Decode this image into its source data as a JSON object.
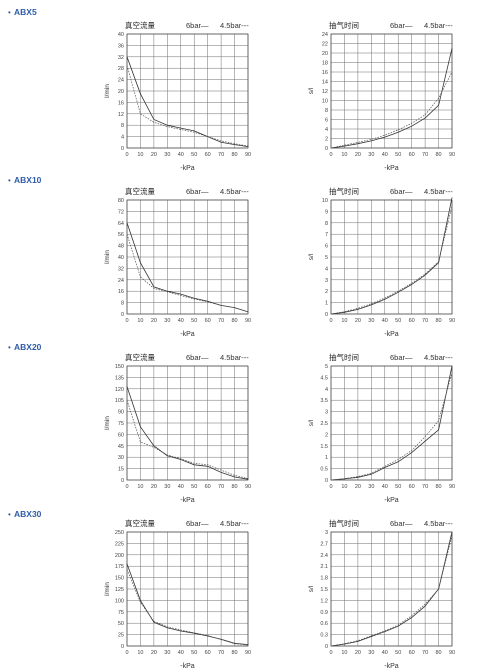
{
  "sections": [
    {
      "label": "ABX5"
    },
    {
      "label": "ABX10"
    },
    {
      "label": "ABX20"
    },
    {
      "label": "ABX30"
    }
  ],
  "section_marker": "•",
  "colors": {
    "section_label": "#2f5da8",
    "grid": "#6e6e6e",
    "solid": "#333333",
    "dashed": "#555555"
  },
  "chart_data": [
    {
      "type": "line",
      "section": "ABX5",
      "title": "真空流量",
      "legend": [
        "6bar—",
        "4.5bar---"
      ],
      "xlabel": "-kPa",
      "ylabel": "l/min",
      "x": [
        0,
        10,
        20,
        30,
        40,
        50,
        60,
        70,
        80,
        90
      ],
      "xlim": [
        0,
        90
      ],
      "ylim": [
        0,
        40
      ],
      "yticks": [
        "0",
        "4",
        "8",
        "12",
        "16",
        "20",
        "24",
        "28",
        "32",
        "36",
        "40"
      ],
      "series": [
        {
          "name": "6bar",
          "style": "solid",
          "values": [
            32,
            19,
            10,
            8,
            7,
            6,
            4,
            2,
            1.2,
            0.5
          ]
        },
        {
          "name": "4.5bar",
          "style": "dashed",
          "values": [
            29,
            12,
            9,
            7.5,
            6.5,
            5.5,
            4,
            2.5,
            1.5,
            0.7
          ]
        }
      ]
    },
    {
      "type": "line",
      "section": "ABX5",
      "title": "抽气时间",
      "legend": [
        "6bar—",
        "4.5bar---"
      ],
      "xlabel": "-kPa",
      "ylabel": "s/l",
      "x": [
        0,
        10,
        20,
        30,
        40,
        50,
        60,
        70,
        80,
        90
      ],
      "xlim": [
        0,
        90
      ],
      "ylim": [
        0,
        24
      ],
      "yticks": [
        "0",
        "2",
        "4",
        "6",
        "8",
        "10",
        "12",
        "14",
        "16",
        "18",
        "20",
        "22",
        "24"
      ],
      "series": [
        {
          "name": "6bar",
          "style": "solid",
          "values": [
            0,
            0.4,
            0.9,
            1.5,
            2.3,
            3.3,
            4.6,
            6.3,
            9,
            21
          ]
        },
        {
          "name": "4.5bar",
          "style": "dashed",
          "values": [
            0,
            0.6,
            1.2,
            1.8,
            2.7,
            3.8,
            5.2,
            7,
            10.5,
            16
          ]
        }
      ]
    },
    {
      "type": "line",
      "section": "ABX10",
      "title": "真空流量",
      "legend": [
        "6bar—",
        "4.5bar---"
      ],
      "xlabel": "-kPa",
      "ylabel": "l/min",
      "x": [
        0,
        10,
        20,
        30,
        40,
        50,
        60,
        70,
        80,
        90
      ],
      "xlim": [
        0,
        90
      ],
      "ylim": [
        0,
        80
      ],
      "yticks": [
        "0",
        "8",
        "16",
        "24",
        "32",
        "40",
        "48",
        "56",
        "64",
        "72",
        "80"
      ],
      "series": [
        {
          "name": "6bar",
          "style": "solid",
          "values": [
            64,
            36,
            19,
            16,
            14,
            11,
            9,
            6,
            4.5,
            1.5
          ]
        },
        {
          "name": "4.5bar",
          "style": "dashed",
          "values": [
            56,
            26,
            18,
            15.5,
            13,
            10.5,
            8.5,
            6,
            4.5,
            1.5
          ]
        }
      ]
    },
    {
      "type": "line",
      "section": "ABX10",
      "title": "抽气时间",
      "legend": [
        "6bar—",
        "4.5bar---"
      ],
      "xlabel": "-kPa",
      "ylabel": "s/l",
      "x": [
        0,
        10,
        20,
        30,
        40,
        50,
        60,
        70,
        80,
        90
      ],
      "xlim": [
        0,
        90
      ],
      "ylim": [
        0,
        10
      ],
      "yticks": [
        "0",
        "1",
        "2",
        "3",
        "4",
        "5",
        "6",
        "7",
        "8",
        "9",
        "10"
      ],
      "series": [
        {
          "name": "6bar",
          "style": "solid",
          "values": [
            0,
            0.15,
            0.4,
            0.8,
            1.3,
            1.9,
            2.6,
            3.4,
            4.5,
            10.2
          ]
        },
        {
          "name": "4.5bar",
          "style": "dashed",
          "values": [
            0,
            0.2,
            0.5,
            0.9,
            1.4,
            2,
            2.7,
            3.5,
            4.6,
            9.5
          ]
        }
      ]
    },
    {
      "type": "line",
      "section": "ABX20",
      "title": "真空流量",
      "legend": [
        "6bar—",
        "4.5bar---"
      ],
      "xlabel": "-kPa",
      "ylabel": "l/min",
      "x": [
        0,
        10,
        20,
        30,
        40,
        50,
        60,
        70,
        80,
        90
      ],
      "xlim": [
        0,
        90
      ],
      "ylim": [
        0,
        150
      ],
      "yticks": [
        "0",
        "15",
        "30",
        "45",
        "60",
        "75",
        "90",
        "105",
        "120",
        "135",
        "150"
      ],
      "series": [
        {
          "name": "6bar",
          "style": "solid",
          "values": [
            123,
            70,
            45,
            32,
            27,
            20,
            18,
            10,
            4,
            1
          ]
        },
        {
          "name": "4.5bar",
          "style": "dashed",
          "values": [
            105,
            50,
            43,
            33,
            28,
            22,
            20,
            13,
            6,
            2
          ]
        }
      ]
    },
    {
      "type": "line",
      "section": "ABX20",
      "title": "抽气时间",
      "legend": [
        "6bar—",
        "4.5bar---"
      ],
      "xlabel": "-kPa",
      "ylabel": "s/l",
      "x": [
        0,
        10,
        20,
        30,
        40,
        50,
        60,
        70,
        80,
        90
      ],
      "xlim": [
        0,
        90
      ],
      "ylim": [
        0,
        5
      ],
      "yticks": [
        "0",
        "0.5",
        "1",
        "1.5",
        "2",
        "2.5",
        "3",
        "3.5",
        "4",
        "4.5",
        "5"
      ],
      "series": [
        {
          "name": "6bar",
          "style": "solid",
          "values": [
            0,
            0.05,
            0.12,
            0.25,
            0.55,
            0.8,
            1.2,
            1.7,
            2.2,
            5
          ]
        },
        {
          "name": "4.5bar",
          "style": "dashed",
          "values": [
            0,
            0.06,
            0.15,
            0.3,
            0.6,
            0.9,
            1.3,
            1.9,
            2.6,
            4.7
          ]
        }
      ]
    },
    {
      "type": "line",
      "section": "ABX30",
      "title": "真空流量",
      "legend": [
        "6bar—",
        "4.5bar---"
      ],
      "xlabel": "-kPa",
      "ylabel": "l/min",
      "x": [
        0,
        10,
        20,
        30,
        40,
        50,
        60,
        70,
        80,
        90
      ],
      "xlim": [
        0,
        90
      ],
      "ylim": [
        0,
        250
      ],
      "yticks": [
        "0",
        "25",
        "50",
        "75",
        "100",
        "125",
        "150",
        "175",
        "200",
        "225",
        "250"
      ],
      "series": [
        {
          "name": "6bar",
          "style": "solid",
          "values": [
            180,
            100,
            52,
            40,
            33,
            28,
            22,
            15,
            6,
            3
          ]
        },
        {
          "name": "4.5bar",
          "style": "dashed",
          "values": [
            168,
            96,
            54,
            42,
            35,
            29,
            23,
            14,
            5,
            2
          ]
        }
      ]
    },
    {
      "type": "line",
      "section": "ABX30",
      "title": "抽气时间",
      "legend": [
        "6bar—",
        "4.5bar---"
      ],
      "xlabel": "-kPa",
      "ylabel": "s/l",
      "x": [
        0,
        10,
        20,
        30,
        40,
        50,
        60,
        70,
        80,
        90
      ],
      "xlim": [
        0,
        90
      ],
      "ylim": [
        0,
        3
      ],
      "yticks": [
        "0",
        "0.3",
        "0.6",
        "0.9",
        "1.2",
        "1.5",
        "1.8",
        "2.1",
        "2.4",
        "2.7",
        "3"
      ],
      "series": [
        {
          "name": "6bar",
          "style": "solid",
          "values": [
            0,
            0.05,
            0.12,
            0.25,
            0.38,
            0.52,
            0.75,
            1.05,
            1.5,
            3
          ]
        },
        {
          "name": "4.5bar",
          "style": "dashed",
          "values": [
            0,
            0.06,
            0.14,
            0.27,
            0.4,
            0.55,
            0.8,
            1.1,
            1.5,
            2.9
          ]
        }
      ]
    }
  ]
}
